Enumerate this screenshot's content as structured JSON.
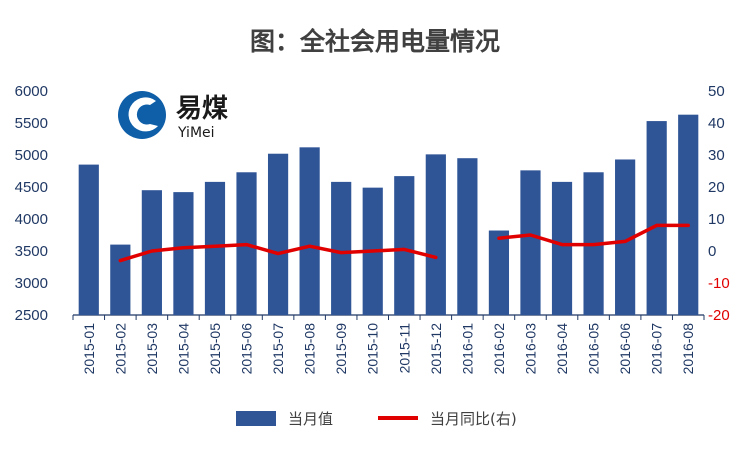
{
  "chart_data": {
    "type": "bar",
    "title": "图：全社会用电量情况",
    "categories": [
      "2015-01",
      "2015-02",
      "2015-03",
      "2015-04",
      "2015-05",
      "2015-06",
      "2015-07",
      "2015-08",
      "2015-09",
      "2015-10",
      "2015-11",
      "2015-12",
      "2016-01",
      "2016-02",
      "2016-03",
      "2016-04",
      "2016-05",
      "2016-06",
      "2016-07",
      "2016-08"
    ],
    "series": [
      {
        "name": "当月值",
        "type": "bar",
        "axis": "left",
        "color": "#2f5597",
        "values": [
          4850,
          3600,
          4450,
          4420,
          4580,
          4730,
          5020,
          5120,
          4580,
          4490,
          4670,
          5010,
          4950,
          3820,
          4760,
          4580,
          4730,
          4930,
          5530,
          5630
        ]
      },
      {
        "name": "当月同比(右)",
        "type": "line",
        "axis": "right",
        "color": "#e00000",
        "values": [
          null,
          -3.0,
          0.0,
          1.0,
          1.5,
          2.0,
          -0.8,
          1.5,
          -0.5,
          0.0,
          0.5,
          -2.0,
          null,
          4.0,
          5.0,
          2.0,
          2.0,
          3.0,
          8.0,
          8.0
        ]
      }
    ],
    "yleft": {
      "min": 2500,
      "max": 6000,
      "ticks": [
        2500,
        3000,
        3500,
        4000,
        4500,
        5000,
        5500,
        6000
      ]
    },
    "yright": {
      "min": -20,
      "max": 50,
      "ticks": [
        -20,
        -10,
        0,
        10,
        20,
        30,
        40,
        50
      ]
    },
    "legend_position": "bottom-center",
    "grid": false
  },
  "logo": {
    "name": "易煤",
    "sub": "YiMei",
    "icon": "yimei-logo-icon"
  }
}
